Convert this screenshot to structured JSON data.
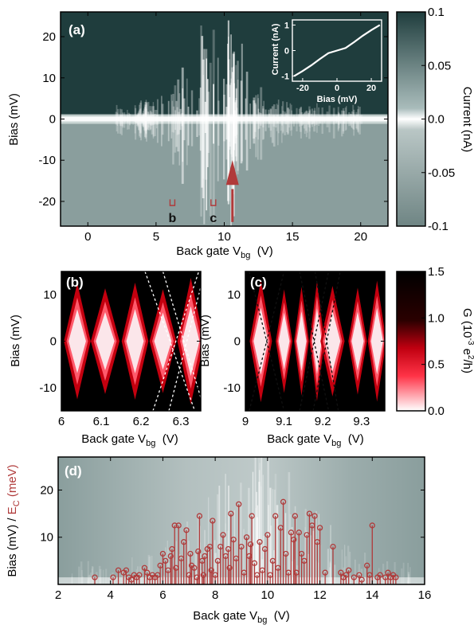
{
  "chart_data": [
    {
      "id": "a",
      "type": "heatmap",
      "panel_label": "(a)",
      "xlabel": "Back gate V",
      "xlabel_sub": "bg",
      "xlabel_unit": "(V)",
      "ylabel": "Bias (mV)",
      "xlim": [
        -2,
        22
      ],
      "ylim": [
        -26,
        26
      ],
      "xticks": [
        0,
        5,
        10,
        15,
        20
      ],
      "yticks": [
        -20,
        -10,
        0,
        10,
        20
      ],
      "colorbar": {
        "label": "Current (nA)",
        "range": [
          -0.1,
          0.1
        ],
        "ticks": [
          0.1,
          0.05,
          0.0,
          -0.05,
          -0.1
        ],
        "tick_labels": [
          "0.1",
          "0.05",
          "0.0",
          "-0.05",
          "-0.1"
        ],
        "colors": [
          "#6f8584",
          "#ffffff",
          "#1f3d3d"
        ]
      },
      "markers": [
        {
          "label": "b",
          "x": 6.2
        },
        {
          "label": "c",
          "x": 9.2
        }
      ],
      "arrow_x": 10.6,
      "arrow_color": "#b03a3a",
      "inset": {
        "type": "line",
        "xlabel": "Bias (mV)",
        "ylabel": "Current (nA)",
        "xlim": [
          -26,
          26
        ],
        "ylim": [
          -1.2,
          1.2
        ],
        "xticks": [
          -20,
          0,
          20
        ],
        "yticks": [
          -1,
          0,
          1
        ],
        "x": [
          -25,
          -20,
          -15,
          -10,
          -5,
          0,
          5,
          10,
          15,
          20,
          25
        ],
        "y": [
          -1.0,
          -0.8,
          -0.58,
          -0.33,
          -0.1,
          0.0,
          0.1,
          0.33,
          0.58,
          0.8,
          1.0
        ]
      }
    },
    {
      "id": "b",
      "type": "heatmap",
      "panel_label": "(b)",
      "xlabel": "Back gate V",
      "xlabel_sub": "bg",
      "xlabel_unit": "(V)",
      "ylabel": "Bias (mV)",
      "xlim": [
        6.0,
        6.35
      ],
      "ylim": [
        -15,
        15
      ],
      "xticks": [
        6.0,
        6.1,
        6.2,
        6.3
      ],
      "xtick_labels": [
        "6",
        "6.1",
        "6.2",
        "6.3"
      ],
      "yticks": [
        -10,
        0,
        10
      ],
      "diamond_centers": [
        6.04,
        6.11,
        6.185,
        6.255,
        6.325
      ],
      "dashed_lines": [
        [
          6.23,
          -15,
          6.345,
          15
        ],
        [
          6.255,
          15,
          6.36,
          -15
        ],
        [
          6.21,
          15,
          6.335,
          -15
        ],
        [
          6.27,
          -15,
          6.36,
          15
        ]
      ]
    },
    {
      "id": "c",
      "type": "heatmap",
      "panel_label": "(c)",
      "xlabel": "Back gate V",
      "xlabel_sub": "bg",
      "xlabel_unit": "(V)",
      "ylabel": "Bias (mV)",
      "xlim": [
        9.0,
        9.36
      ],
      "ylim": [
        -15,
        15
      ],
      "xticks": [
        9.0,
        9.1,
        9.2,
        9.3
      ],
      "xtick_labels": [
        "9",
        "9.1",
        "9.2",
        "9.3"
      ],
      "yticks": [
        -10,
        0,
        10
      ],
      "diamond_centers": [
        9.04,
        9.1,
        9.145,
        9.185,
        9.225,
        9.29,
        9.34
      ],
      "dashed_lines": [
        [
          9.01,
          -15,
          9.1,
          15
        ],
        [
          9.01,
          15,
          9.1,
          -15
        ],
        [
          9.14,
          15,
          9.215,
          -15
        ],
        [
          9.14,
          -15,
          9.215,
          15
        ],
        [
          9.18,
          15,
          9.24,
          -15
        ],
        [
          9.175,
          -15,
          9.245,
          15
        ]
      ],
      "colorbar": {
        "label": "G (10",
        "label_sup": "-3",
        "label_tail": " e",
        "label_sup2": "2",
        "label_end": "/h)",
        "range": [
          0.0,
          1.5
        ],
        "ticks": [
          1.5,
          1.0,
          0.5,
          0.0
        ],
        "tick_labels": [
          "1.5",
          "1.0",
          "0.5",
          "0.0"
        ],
        "colors": [
          "#ffffff",
          "#e3001f",
          "#000000"
        ]
      }
    },
    {
      "id": "d",
      "type": "bar",
      "panel_label": "(d)",
      "xlabel": "Back gate V",
      "xlabel_sub": "bg",
      "xlabel_unit": "(V)",
      "ylabel_a": "Bias (mV) / ",
      "ylabel_b": "E",
      "ylabel_b_sub": "C",
      "ylabel_b_tail": " (meV)",
      "ylabel_b_color": "#b03a3a",
      "xlim": [
        2,
        16
      ],
      "ylim": [
        0,
        27
      ],
      "xticks": [
        2,
        4,
        6,
        8,
        10,
        12,
        14,
        16
      ],
      "yticks": [
        10,
        20
      ],
      "series_color": "#b03a3a",
      "x": [
        3.4,
        4.1,
        4.3,
        4.5,
        4.6,
        4.7,
        4.8,
        4.9,
        5.0,
        5.1,
        5.3,
        5.4,
        5.5,
        5.6,
        5.7,
        5.8,
        5.9,
        6.0,
        6.1,
        6.2,
        6.3,
        6.35,
        6.45,
        6.5,
        6.6,
        6.7,
        6.8,
        6.9,
        7.0,
        7.05,
        7.1,
        7.2,
        7.3,
        7.35,
        7.4,
        7.5,
        7.55,
        7.6,
        7.7,
        7.8,
        7.85,
        7.9,
        8.0,
        8.1,
        8.2,
        8.3,
        8.4,
        8.5,
        8.55,
        8.6,
        8.7,
        8.8,
        8.9,
        9.0,
        9.1,
        9.2,
        9.3,
        9.35,
        9.4,
        9.5,
        9.6,
        9.7,
        9.8,
        9.9,
        10.0,
        10.1,
        10.2,
        10.3,
        10.4,
        10.5,
        10.6,
        10.7,
        10.8,
        10.9,
        11.0,
        11.05,
        11.1,
        11.2,
        11.3,
        11.4,
        11.5,
        11.6,
        11.7,
        11.8,
        11.9,
        12.0,
        12.2,
        12.5,
        12.8,
        12.9,
        13.0,
        13.1,
        13.3,
        13.5,
        13.6,
        13.8,
        13.9,
        14.0,
        14.2,
        14.3,
        14.5,
        14.6,
        14.7,
        14.8,
        14.9
      ],
      "values": [
        1.5,
        1.5,
        3.0,
        2.5,
        3.0,
        1.5,
        1.0,
        2.0,
        1.5,
        2.0,
        3.5,
        2.5,
        1.5,
        2.0,
        1.5,
        2.0,
        4.0,
        6.5,
        5.0,
        3.0,
        6.0,
        7.5,
        12.5,
        3.5,
        12.5,
        5.5,
        9.0,
        11.5,
        2.0,
        6.5,
        4.0,
        3.5,
        1.5,
        7.0,
        14.5,
        5.0,
        2.0,
        6.0,
        7.5,
        8.0,
        3.0,
        13.5,
        2.0,
        5.0,
        8.0,
        10.5,
        6.0,
        7.5,
        3.5,
        15.0,
        9.5,
        5.5,
        17.0,
        8.0,
        2.5,
        10.0,
        6.0,
        8.5,
        14.5,
        4.5,
        2.0,
        9.0,
        3.0,
        7.5,
        10.5,
        2.0,
        5.0,
        14.5,
        3.5,
        12.0,
        17.5,
        6.5,
        2.5,
        11.0,
        9.5,
        14.5,
        2.5,
        11.0,
        6.5,
        5.0,
        10.5,
        15.0,
        12.5,
        14.5,
        9.0,
        12.0,
        2.5,
        8.0,
        2.5,
        1.5,
        2.0,
        3.0,
        1.5,
        2.0,
        1.0,
        4.0,
        2.0,
        12.5,
        1.5,
        2.0,
        1.5,
        2.5,
        1.5,
        2.0,
        1.5
      ]
    }
  ]
}
